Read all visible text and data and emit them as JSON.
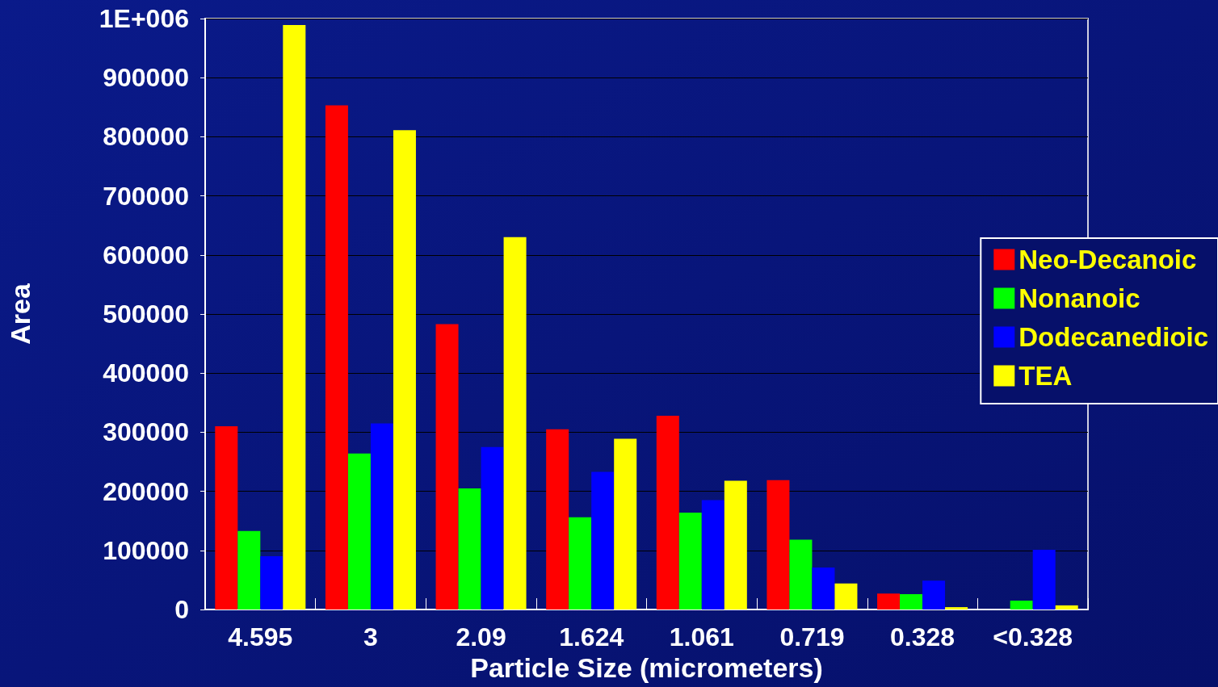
{
  "chart_data": {
    "type": "bar",
    "xlabel": "Particle Size (micrometers)",
    "ylabel": "Area",
    "categories": [
      "4.595",
      "3",
      "2.09",
      "1.624",
      "1.061",
      "0.719",
      "0.328",
      "<0.328"
    ],
    "series": [
      {
        "name": "Neo-Decanoic",
        "color": "#ff0000",
        "values": [
          310000,
          853000,
          483000,
          305000,
          328000,
          219000,
          27000,
          null
        ]
      },
      {
        "name": "Nonanoic",
        "color": "#00ff00",
        "values": [
          133000,
          264000,
          205000,
          156000,
          164000,
          118000,
          26000,
          15000
        ]
      },
      {
        "name": "Dodecanedioic",
        "color": "#0000ff",
        "values": [
          90000,
          315000,
          275000,
          233000,
          185000,
          71000,
          49000,
          101000
        ]
      },
      {
        "name": "TEA",
        "color": "#ffff00",
        "values": [
          989000,
          811000,
          630000,
          289000,
          218000,
          44000,
          4000,
          7000
        ]
      }
    ],
    "ylim": [
      0,
      1000000
    ],
    "yticks": [
      0,
      100000,
      200000,
      300000,
      400000,
      500000,
      600000,
      700000,
      800000,
      900000,
      {
        "value": 1000000,
        "label": "1E+006"
      }
    ],
    "grid": "y",
    "legend": "right"
  }
}
